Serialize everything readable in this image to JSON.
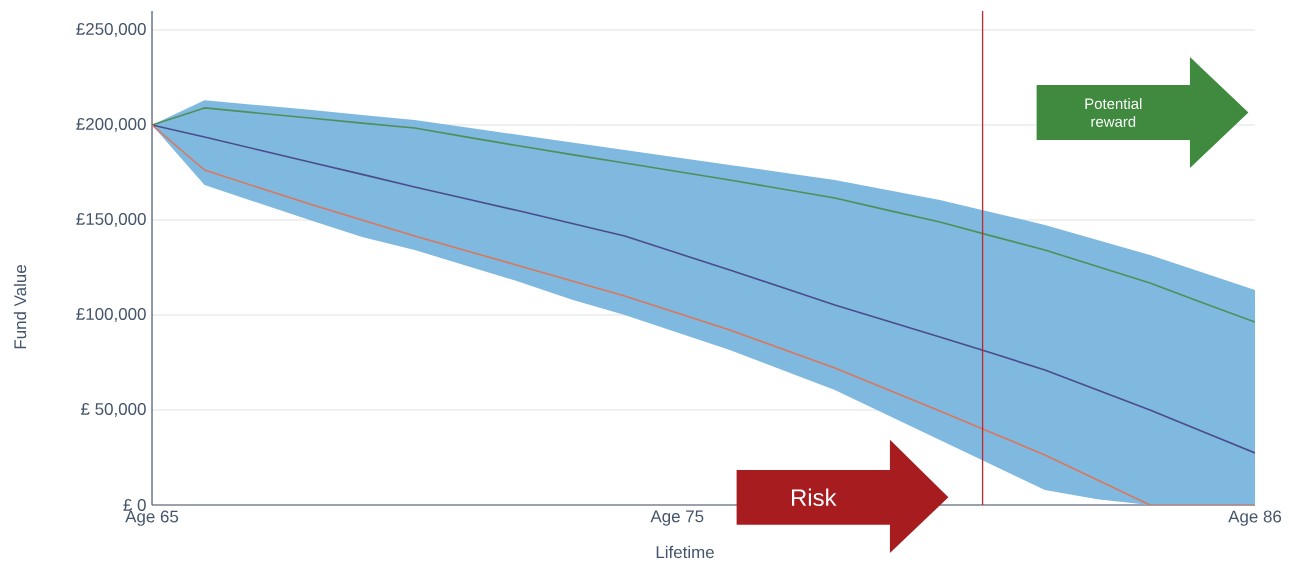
{
  "chart_data": {
    "type": "line",
    "xlabel": "Lifetime",
    "ylabel": "Fund Value",
    "categories": [
      "Age 65",
      null,
      null,
      null,
      null,
      null,
      null,
      null,
      null,
      null,
      "Age 75",
      null,
      null,
      null,
      null,
      null,
      null,
      null,
      null,
      null,
      null,
      "Age 86"
    ],
    "ylim": [
      0,
      260000
    ],
    "yticks": [
      {
        "value": 0,
        "label": "£ 0"
      },
      {
        "value": 50000,
        "label": "£ 50,000"
      },
      {
        "value": 100000,
        "label": "£100,000"
      },
      {
        "value": 150000,
        "label": "£150,000"
      },
      {
        "value": 200000,
        "label": "£200,000"
      },
      {
        "value": 250000,
        "label": "£250,000"
      }
    ],
    "grid": "y",
    "marker": "none",
    "line_style": "solid",
    "series": [
      {
        "color": "#4f8f5a",
        "values": [
          200000,
          209000,
          206300,
          203700,
          201000,
          198400,
          193600,
          188900,
          184400,
          180000,
          175500,
          171000,
          166300,
          161600,
          155200,
          148900,
          141500,
          134200,
          125500,
          116800,
          106500,
          96300
        ]
      },
      {
        "color": "#4a4c8c",
        "values": [
          200000,
          193700,
          187100,
          180500,
          174000,
          167400,
          161000,
          154700,
          148100,
          141600,
          132600,
          123700,
          114500,
          105300,
          96800,
          88400,
          79800,
          71100,
          60500,
          50000,
          38700,
          27400
        ],
        "upper": [
          200000,
          213000,
          210500,
          208000,
          205300,
          202600,
          198700,
          194700,
          190800,
          186800,
          182900,
          179000,
          175000,
          171000,
          165800,
          160500,
          154000,
          147400,
          139500,
          131600,
          122400,
          113200
        ],
        "lower": [
          200000,
          168400,
          159200,
          150000,
          141000,
          134200,
          125800,
          117400,
          108000,
          100000,
          90800,
          81600,
          71000,
          60500,
          47400,
          34200,
          21000,
          7900,
          3000,
          0,
          0,
          0
        ]
      },
      {
        "color": "#d9775e",
        "values": [
          200000,
          176300,
          167300,
          158400,
          150000,
          141600,
          133700,
          125800,
          117900,
          110000,
          101000,
          92100,
          82100,
          72100,
          60800,
          49500,
          37900,
          26300,
          13100,
          0,
          0,
          0
        ]
      }
    ],
    "annotations": [
      "Potential reward",
      "Risk"
    ]
  }
}
